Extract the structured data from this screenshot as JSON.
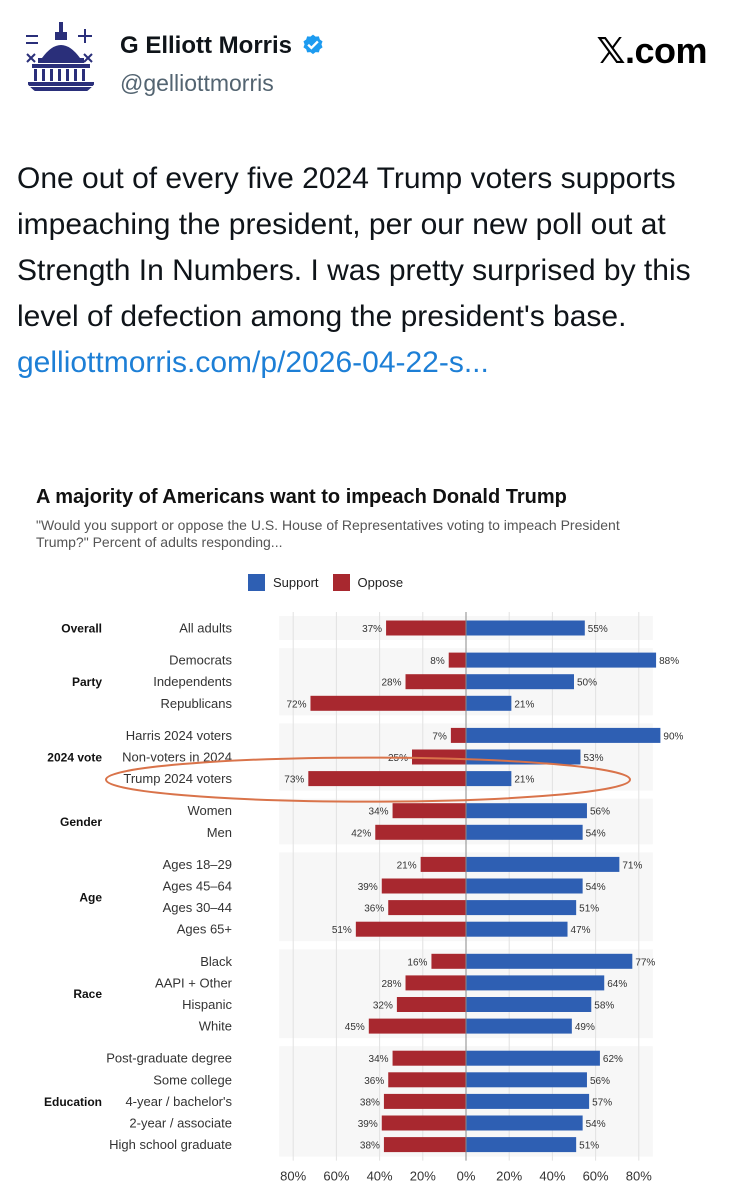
{
  "header": {
    "display_name": "G Elliott Morris",
    "handle": "@gelliottmorris",
    "site": "𝕏.com"
  },
  "tweet": {
    "text": "One out of every five 2024 Trump voters supports impeaching the president, per our new poll out at Strength In Numbers. I was pretty surprised by this level of defection among the president's base. ",
    "link_text": "gelliottmorris.com/p/​2026-04-22-s..."
  },
  "colors": {
    "support": "#2e5fb3",
    "oppose": "#a8282f",
    "link": "#1d7fd6",
    "verified": "#1d9bf0",
    "highlight": "#d9734a"
  },
  "icons": [
    "capitol-logo-icon",
    "verified-badge-icon",
    "x-logo-icon"
  ],
  "chart_data": {
    "type": "bar",
    "title": "A majority of Americans want to impeach Donald Trump",
    "subtitle": "\"Would you support or oppose the U.S. House of Representatives voting to impeach President Trump?\" Percent of adults responding...",
    "legend": [
      "Support",
      "Oppose"
    ],
    "x_ticks": [
      "80%",
      "60%",
      "40%",
      "20%",
      "0%",
      "20%",
      "40%",
      "60%",
      "80%"
    ],
    "xlim": [
      -80,
      80
    ],
    "highlighted_row": "Trump 2024 voters",
    "groups": [
      {
        "name": "Overall",
        "rows": [
          {
            "label": "All adults",
            "support": 55,
            "oppose": 37
          }
        ]
      },
      {
        "name": "Party",
        "rows": [
          {
            "label": "Democrats",
            "support": 88,
            "oppose": 8
          },
          {
            "label": "Independents",
            "support": 50,
            "oppose": 28
          },
          {
            "label": "Republicans",
            "support": 21,
            "oppose": 72
          }
        ]
      },
      {
        "name": "2024 vote",
        "rows": [
          {
            "label": "Harris 2024 voters",
            "support": 90,
            "oppose": 7
          },
          {
            "label": "Non-voters in 2024",
            "support": 53,
            "oppose": 25
          },
          {
            "label": "Trump 2024 voters",
            "support": 21,
            "oppose": 73
          }
        ]
      },
      {
        "name": "Gender",
        "rows": [
          {
            "label": "Women",
            "support": 56,
            "oppose": 34
          },
          {
            "label": "Men",
            "support": 54,
            "oppose": 42
          }
        ]
      },
      {
        "name": "Age",
        "rows": [
          {
            "label": "Ages 18–29",
            "support": 71,
            "oppose": 21
          },
          {
            "label": "Ages 45–64",
            "support": 54,
            "oppose": 39
          },
          {
            "label": "Ages 30–44",
            "support": 51,
            "oppose": 36
          },
          {
            "label": "Ages 65+",
            "support": 47,
            "oppose": 51
          }
        ]
      },
      {
        "name": "Race",
        "rows": [
          {
            "label": "Black",
            "support": 77,
            "oppose": 16
          },
          {
            "label": "AAPI + Other",
            "support": 64,
            "oppose": 28
          },
          {
            "label": "Hispanic",
            "support": 58,
            "oppose": 32
          },
          {
            "label": "White",
            "support": 49,
            "oppose": 45
          }
        ]
      },
      {
        "name": "Education",
        "rows": [
          {
            "label": "Post-graduate degree",
            "support": 62,
            "oppose": 34
          },
          {
            "label": "Some college",
            "support": 56,
            "oppose": 36
          },
          {
            "label": "4-year / bachelor's",
            "support": 57,
            "oppose": 38
          },
          {
            "label": "2-year / associate",
            "support": 54,
            "oppose": 39
          },
          {
            "label": "High school graduate",
            "support": 51,
            "oppose": 38
          }
        ]
      }
    ]
  }
}
